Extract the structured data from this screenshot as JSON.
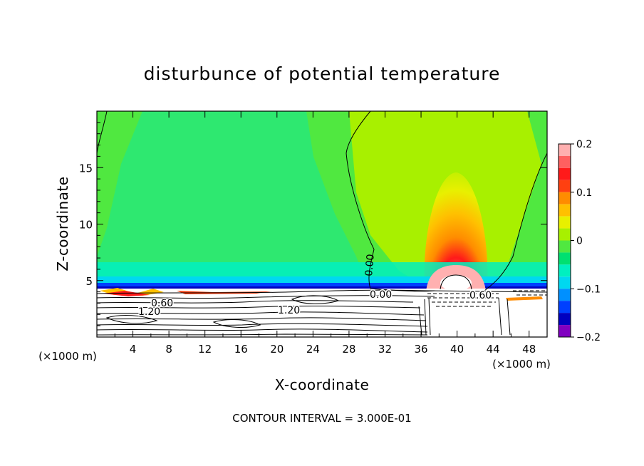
{
  "chart_data": {
    "type": "heatmap",
    "title": "disturbunce of potential temperature",
    "xlabel": "X-coordinate",
    "ylabel": "Z-coordinate",
    "x_unit": "(×1000 m)",
    "z_unit": "(×1000 m)",
    "xlim": [
      0,
      50
    ],
    "zlim": [
      0,
      20
    ],
    "x_ticks": [
      4,
      8,
      12,
      16,
      20,
      24,
      28,
      32,
      36,
      40,
      44,
      48
    ],
    "x_tick_labels": [
      "4",
      "8",
      "12",
      "16",
      "20",
      "24",
      "28",
      "32",
      "36",
      "40",
      "44",
      "48"
    ],
    "z_ticks": [
      5,
      10,
      15
    ],
    "z_tick_labels": [
      "5",
      "10",
      "15"
    ],
    "colorbar": {
      "min": -0.2,
      "max": 0.2,
      "ticks": [
        0.2,
        0.1,
        0,
        -0.1,
        -0.2
      ],
      "tick_labels": [
        "0.2",
        "0.1",
        "0",
        "−0.1",
        "−0.2"
      ],
      "levels": [
        {
          "from": 0.175,
          "to": 0.2,
          "color": "#ffb0b0"
        },
        {
          "from": 0.15,
          "to": 0.175,
          "color": "#ff6060"
        },
        {
          "from": 0.125,
          "to": 0.15,
          "color": "#ff1a1a"
        },
        {
          "from": 0.1,
          "to": 0.125,
          "color": "#ff4010"
        },
        {
          "from": 0.075,
          "to": 0.1,
          "color": "#ff8c00"
        },
        {
          "from": 0.05,
          "to": 0.075,
          "color": "#ffc000"
        },
        {
          "from": 0.025,
          "to": 0.05,
          "color": "#e8f000"
        },
        {
          "from": 0.0,
          "to": 0.025,
          "color": "#a8f000"
        },
        {
          "from": -0.025,
          "to": 0.0,
          "color": "#50e840"
        },
        {
          "from": -0.05,
          "to": -0.025,
          "color": "#00e070"
        },
        {
          "from": -0.075,
          "to": -0.05,
          "color": "#00f0c0"
        },
        {
          "from": -0.1,
          "to": -0.075,
          "color": "#00d8f0"
        },
        {
          "from": -0.125,
          "to": -0.1,
          "color": "#0090ff"
        },
        {
          "from": -0.15,
          "to": -0.125,
          "color": "#0040ff"
        },
        {
          "from": -0.175,
          "to": -0.15,
          "color": "#0000c0"
        },
        {
          "from": -0.2,
          "to": -0.175,
          "color": "#8000c0"
        }
      ]
    },
    "contour_labels": [
      "0.00",
      "0.00",
      "0.60",
      "0.60",
      "1.20",
      "1.20"
    ],
    "footer": "CONTOUR INTERVAL = 3.000E-01"
  }
}
